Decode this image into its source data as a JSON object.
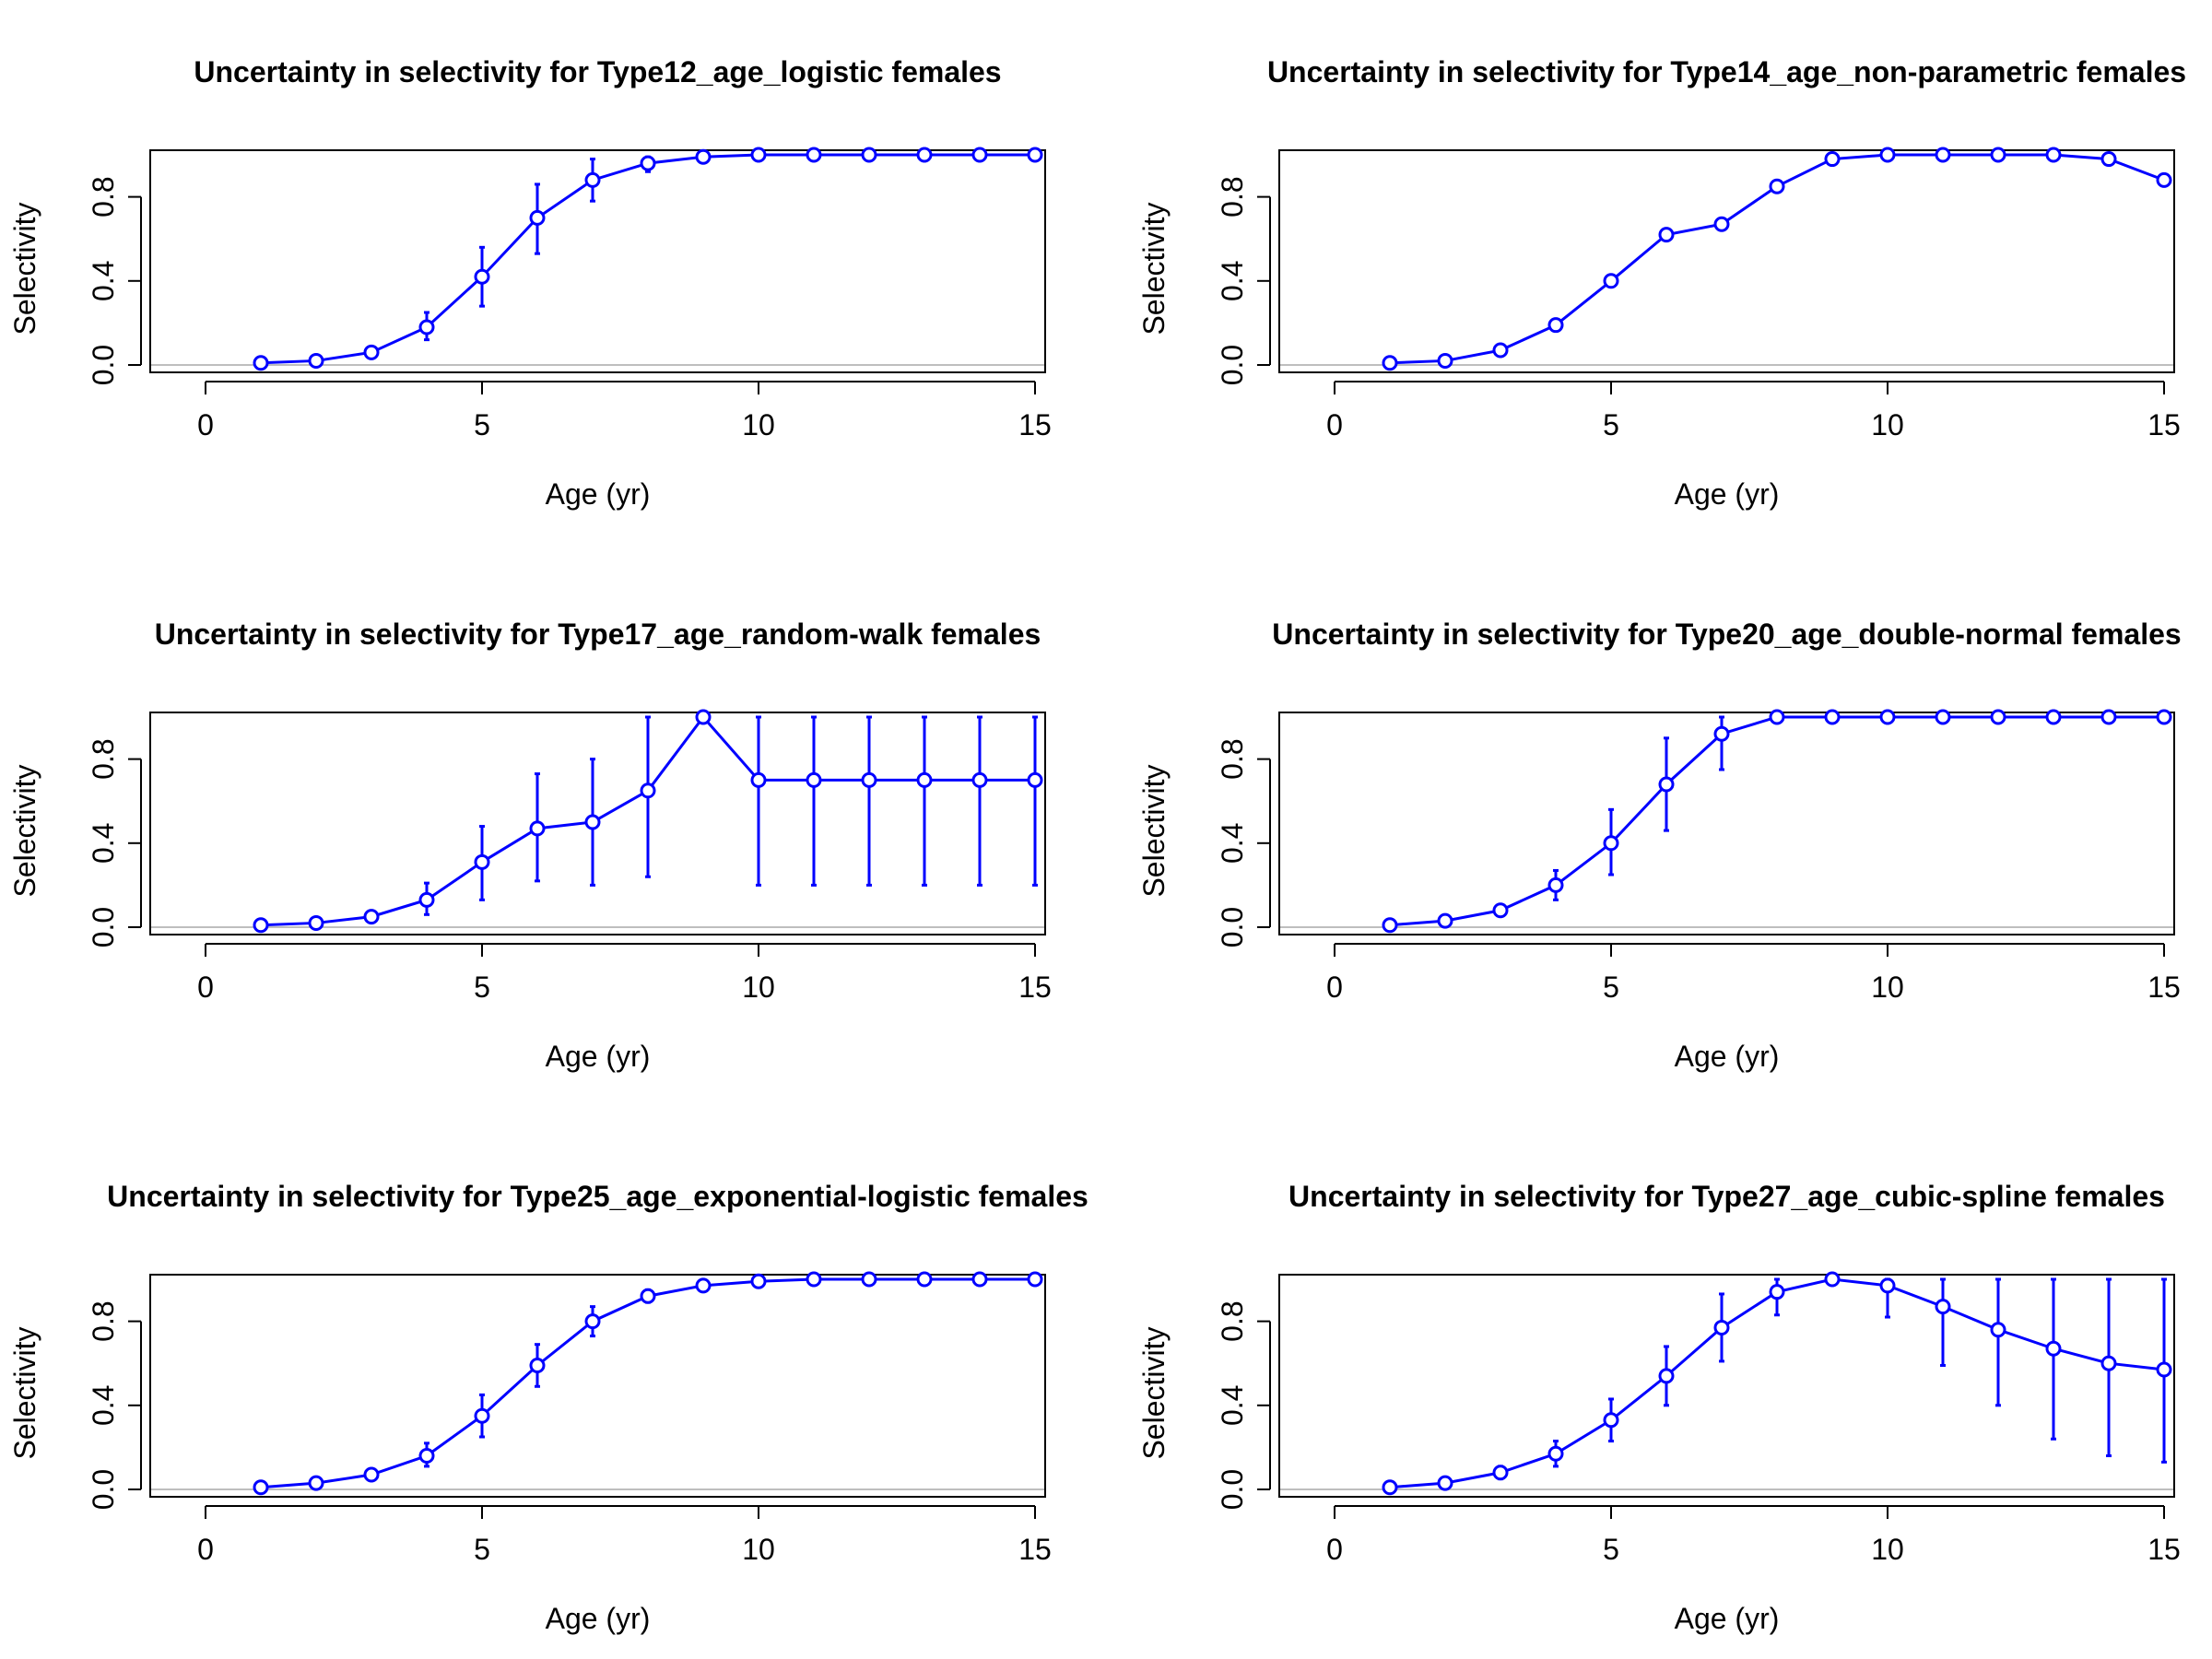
{
  "colors": {
    "series": "#0000ff",
    "frame": "#000000",
    "reference": "#bebebe",
    "background": "#ffffff"
  },
  "chart_data": [
    {
      "type": "line",
      "title": "Uncertainty in selectivity for Type12_age_logistic females",
      "xlabel": "Age (yr)",
      "ylabel": "Selectivity",
      "xlim": [
        0,
        15
      ],
      "ylim": [
        0,
        1
      ],
      "xticks": [
        "0",
        "5",
        "10",
        "15"
      ],
      "yticks": [
        "0.0",
        "0.4",
        "0.8"
      ],
      "grid": false,
      "x": [
        1,
        2,
        3,
        4,
        5,
        6,
        7,
        8,
        9,
        10,
        11,
        12,
        13,
        14,
        15
      ],
      "y": [
        0.01,
        0.02,
        0.06,
        0.18,
        0.42,
        0.7,
        0.88,
        0.96,
        0.99,
        1.0,
        1.0,
        1.0,
        1.0,
        1.0,
        1.0
      ],
      "lower": [
        0.01,
        0.01,
        0.04,
        0.12,
        0.28,
        0.53,
        0.78,
        0.92,
        0.98,
        1.0,
        1.0,
        1.0,
        1.0,
        1.0,
        1.0
      ],
      "upper": [
        0.02,
        0.03,
        0.08,
        0.25,
        0.56,
        0.86,
        0.98,
        0.99,
        1.0,
        1.0,
        1.0,
        1.0,
        1.0,
        1.0,
        1.0
      ]
    },
    {
      "type": "line",
      "title": "Uncertainty in selectivity for Type14_age_non-parametric females",
      "xlabel": "Age (yr)",
      "ylabel": "Selectivity",
      "xlim": [
        0,
        15
      ],
      "ylim": [
        0,
        1
      ],
      "xticks": [
        "0",
        "5",
        "10",
        "15"
      ],
      "yticks": [
        "0.0",
        "0.4",
        "0.8"
      ],
      "grid": false,
      "x": [
        1,
        2,
        3,
        4,
        5,
        6,
        7,
        8,
        9,
        10,
        11,
        12,
        13,
        14,
        15
      ],
      "y": [
        0.01,
        0.02,
        0.07,
        0.19,
        0.4,
        0.62,
        0.67,
        0.85,
        0.98,
        1.0,
        1.0,
        1.0,
        1.0,
        0.98,
        0.88
      ],
      "lower": [
        0.01,
        0.02,
        0.07,
        0.19,
        0.4,
        0.62,
        0.67,
        0.85,
        0.98,
        1.0,
        1.0,
        1.0,
        1.0,
        0.98,
        0.88
      ],
      "upper": [
        0.01,
        0.02,
        0.07,
        0.19,
        0.4,
        0.62,
        0.67,
        0.85,
        0.98,
        1.0,
        1.0,
        1.0,
        1.0,
        0.98,
        0.88
      ]
    },
    {
      "type": "line",
      "title": "Uncertainty in selectivity for Type17_age_random-walk females",
      "xlabel": "Age (yr)",
      "ylabel": "Selectivity",
      "xlim": [
        0,
        15
      ],
      "ylim": [
        0,
        1
      ],
      "xticks": [
        "0",
        "5",
        "10",
        "15"
      ],
      "yticks": [
        "0.0",
        "0.4",
        "0.8"
      ],
      "grid": false,
      "x": [
        1,
        2,
        3,
        4,
        5,
        6,
        7,
        8,
        9,
        10,
        11,
        12,
        13,
        14,
        15
      ],
      "y": [
        0.01,
        0.02,
        0.05,
        0.13,
        0.31,
        0.47,
        0.5,
        0.65,
        1.0,
        0.7,
        0.7,
        0.7,
        0.7,
        0.7,
        0.7
      ],
      "lower": [
        0.0,
        0.01,
        0.03,
        0.06,
        0.13,
        0.22,
        0.2,
        0.24,
        1.0,
        0.2,
        0.2,
        0.2,
        0.2,
        0.2,
        0.2
      ],
      "upper": [
        0.01,
        0.03,
        0.07,
        0.21,
        0.48,
        0.73,
        0.8,
        1.0,
        1.0,
        1.0,
        1.0,
        1.0,
        1.0,
        1.0,
        1.0
      ]
    },
    {
      "type": "line",
      "title": "Uncertainty in selectivity for Type20_age_double-normal females",
      "xlabel": "Age (yr)",
      "ylabel": "Selectivity",
      "xlim": [
        0,
        15
      ],
      "ylim": [
        0,
        1
      ],
      "xticks": [
        "0",
        "5",
        "10",
        "15"
      ],
      "yticks": [
        "0.0",
        "0.4",
        "0.8"
      ],
      "grid": false,
      "x": [
        1,
        2,
        3,
        4,
        5,
        6,
        7,
        8,
        9,
        10,
        11,
        12,
        13,
        14,
        15
      ],
      "y": [
        0.01,
        0.03,
        0.08,
        0.2,
        0.4,
        0.68,
        0.92,
        1.0,
        1.0,
        1.0,
        1.0,
        1.0,
        1.0,
        1.0,
        1.0
      ],
      "lower": [
        0.01,
        0.02,
        0.06,
        0.13,
        0.25,
        0.46,
        0.75,
        1.0,
        1.0,
        1.0,
        1.0,
        1.0,
        1.0,
        1.0,
        1.0
      ],
      "upper": [
        0.01,
        0.04,
        0.1,
        0.27,
        0.56,
        0.9,
        1.0,
        1.0,
        1.0,
        1.0,
        1.0,
        1.0,
        1.0,
        1.0,
        1.0
      ]
    },
    {
      "type": "line",
      "title": "Uncertainty in selectivity for Type25_age_exponential-logistic females",
      "xlabel": "Age (yr)",
      "ylabel": "Selectivity",
      "xlim": [
        0,
        15
      ],
      "ylim": [
        0,
        1
      ],
      "xticks": [
        "0",
        "5",
        "10",
        "15"
      ],
      "yticks": [
        "0.0",
        "0.4",
        "0.8"
      ],
      "grid": false,
      "x": [
        1,
        2,
        3,
        4,
        5,
        6,
        7,
        8,
        9,
        10,
        11,
        12,
        13,
        14,
        15
      ],
      "y": [
        0.01,
        0.03,
        0.07,
        0.16,
        0.35,
        0.59,
        0.8,
        0.92,
        0.97,
        0.99,
        1.0,
        1.0,
        1.0,
        1.0,
        1.0
      ],
      "lower": [
        0.01,
        0.02,
        0.05,
        0.11,
        0.25,
        0.49,
        0.73,
        0.89,
        0.96,
        0.99,
        1.0,
        1.0,
        1.0,
        1.0,
        1.0
      ],
      "upper": [
        0.01,
        0.04,
        0.09,
        0.22,
        0.45,
        0.69,
        0.87,
        0.95,
        0.98,
        1.0,
        1.0,
        1.0,
        1.0,
        1.0,
        1.0
      ]
    },
    {
      "type": "line",
      "title": "Uncertainty in selectivity for Type27_age_cubic-spline females",
      "xlabel": "Age (yr)",
      "ylabel": "Selectivity",
      "xlim": [
        0,
        15
      ],
      "ylim": [
        0,
        1
      ],
      "xticks": [
        "0",
        "5",
        "10",
        "15"
      ],
      "yticks": [
        "0.0",
        "0.4",
        "0.8"
      ],
      "grid": false,
      "x": [
        1,
        2,
        3,
        4,
        5,
        6,
        7,
        8,
        9,
        10,
        11,
        12,
        13,
        14,
        15
      ],
      "y": [
        0.01,
        0.03,
        0.08,
        0.17,
        0.33,
        0.54,
        0.77,
        0.94,
        1.0,
        0.97,
        0.87,
        0.76,
        0.67,
        0.6,
        0.57
      ],
      "lower": [
        0.01,
        0.02,
        0.05,
        0.11,
        0.23,
        0.4,
        0.61,
        0.83,
        1.0,
        0.82,
        0.59,
        0.4,
        0.24,
        0.16,
        0.13
      ],
      "upper": [
        0.01,
        0.04,
        0.11,
        0.23,
        0.43,
        0.68,
        0.93,
        1.0,
        1.0,
        1.0,
        1.0,
        1.0,
        1.0,
        1.0,
        1.0
      ]
    }
  ]
}
